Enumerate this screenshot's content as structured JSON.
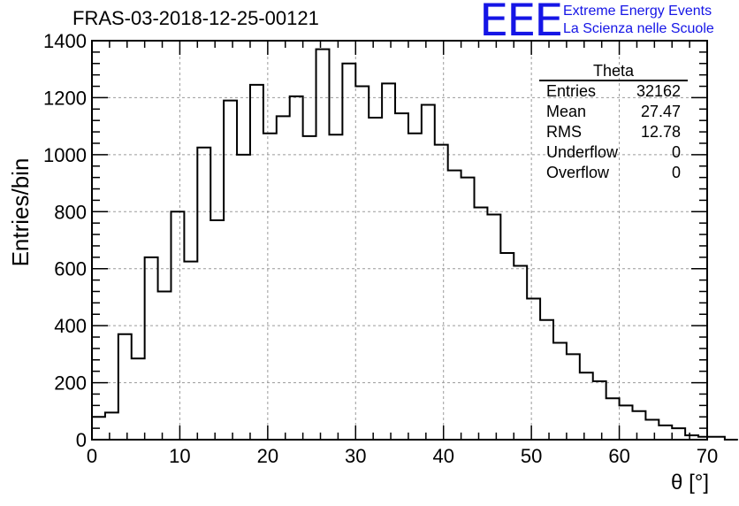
{
  "title": "FRAS-03-2018-12-25-00121",
  "logo": {
    "mark": "EEE",
    "line1": "Extreme Energy Events",
    "line2": "La Scienza nelle Scuole",
    "color": "#1515e6"
  },
  "stats_box": {
    "title": "Theta",
    "rows": [
      {
        "label": "Entries",
        "value": "32162"
      },
      {
        "label": "Mean",
        "value": "27.47"
      },
      {
        "label": "RMS",
        "value": "12.78"
      },
      {
        "label": "Underflow",
        "value": "0"
      },
      {
        "label": "Overflow",
        "value": "0"
      }
    ]
  },
  "chart_data": {
    "type": "histogram",
    "xlabel": "θ [°]",
    "ylabel": "Entries/bin",
    "xlim": [
      0,
      70
    ],
    "ylim": [
      0,
      1400
    ],
    "x_ticks": [
      0,
      10,
      20,
      30,
      40,
      50,
      60,
      70
    ],
    "y_ticks": [
      0,
      200,
      400,
      600,
      800,
      1000,
      1200,
      1400
    ],
    "grid": true,
    "bin_width": 1.5,
    "bin_start": 0,
    "values": [
      80,
      95,
      370,
      285,
      640,
      520,
      800,
      625,
      1025,
      770,
      1190,
      1000,
      1245,
      1075,
      1135,
      1205,
      1065,
      1370,
      1070,
      1320,
      1240,
      1130,
      1250,
      1145,
      1075,
      1175,
      1035,
      945,
      920,
      815,
      790,
      655,
      610,
      495,
      420,
      340,
      300,
      235,
      205,
      145,
      120,
      100,
      70,
      50,
      40,
      15,
      10,
      10,
      0
    ]
  }
}
